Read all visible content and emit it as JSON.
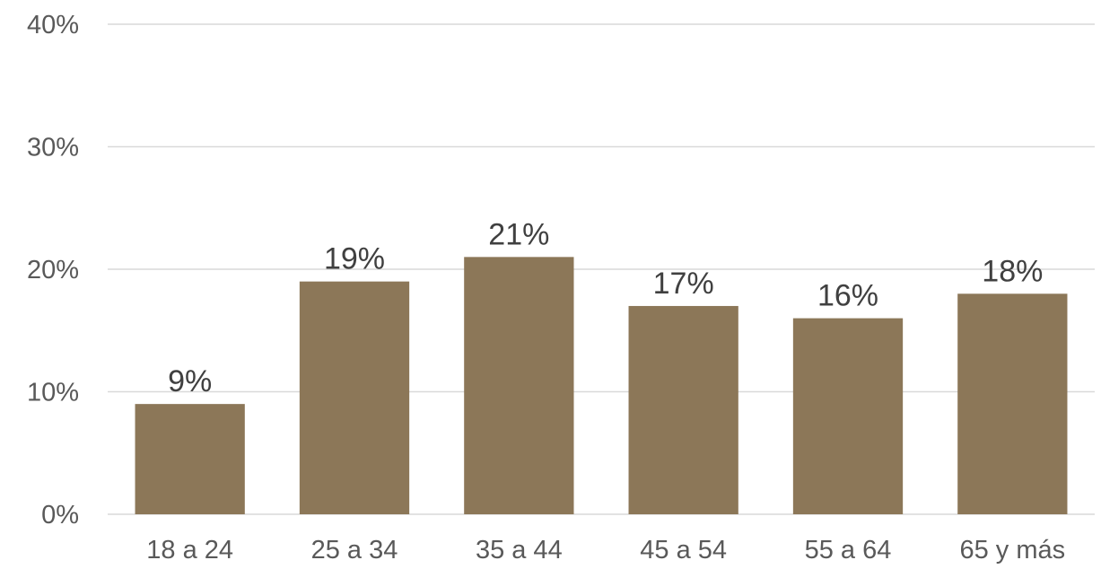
{
  "chart_data": {
    "type": "bar",
    "categories": [
      "18 a 24",
      "25 a 34",
      "35 a 44",
      "45 a 54",
      "55 a 64",
      "65 y más"
    ],
    "values": [
      9,
      19,
      21,
      17,
      16,
      18
    ],
    "data_labels": [
      "9%",
      "19%",
      "21%",
      "17%",
      "16%",
      "18%"
    ],
    "ylim": [
      0,
      40
    ],
    "yticks": [
      0,
      10,
      20,
      30,
      40
    ],
    "ytick_labels": [
      "0%",
      "10%",
      "20%",
      "30%",
      "40%"
    ],
    "grid": true,
    "bar_color": "#8c7758",
    "title": "",
    "xlabel": "",
    "ylabel": ""
  }
}
